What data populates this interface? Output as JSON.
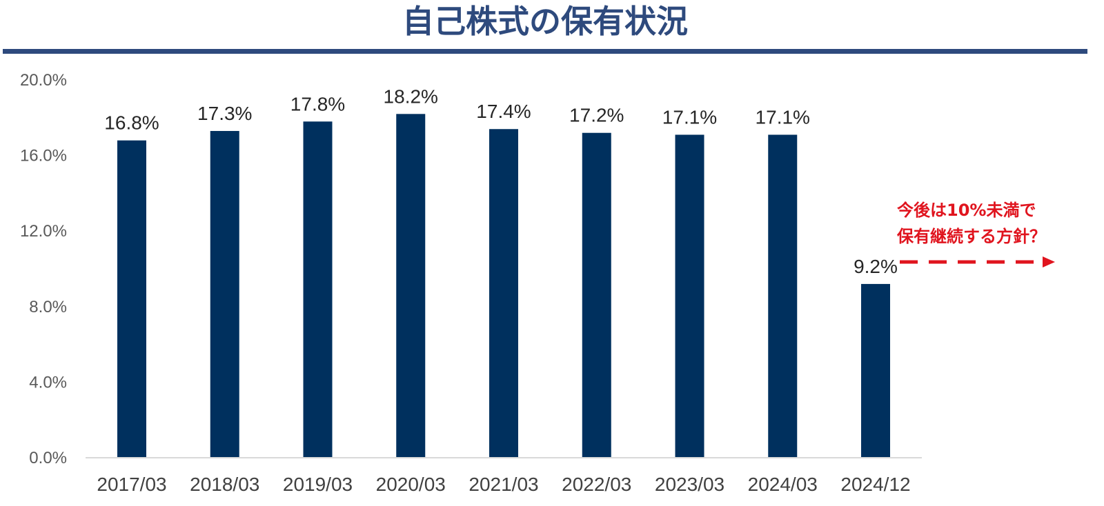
{
  "header": {
    "title": "自己株式の保有状況"
  },
  "chart_data": {
    "type": "bar",
    "title": "自己株式の保有状況",
    "categories": [
      "2017/03",
      "2018/03",
      "2019/03",
      "2020/03",
      "2021/03",
      "2022/03",
      "2023/03",
      "2024/03",
      "2024/12"
    ],
    "values": [
      16.8,
      17.3,
      17.8,
      18.2,
      17.4,
      17.2,
      17.1,
      17.1,
      9.2
    ],
    "data_labels": [
      "16.8%",
      "17.3%",
      "17.8%",
      "18.2%",
      "17.4%",
      "17.2%",
      "17.1%",
      "17.1%",
      "9.2%"
    ],
    "y_ticks": [
      "0.0%",
      "4.0%",
      "8.0%",
      "12.0%",
      "16.0%",
      "20.0%"
    ],
    "ylim": [
      0,
      20
    ],
    "xlabel": "",
    "ylabel": "",
    "grid": false,
    "bar_color": "#00305e",
    "annotation": {
      "lines": [
        "今後は10%未満で",
        "保有継続する方針？"
      ],
      "color": "#e0141e",
      "arrow": "dashed-right"
    }
  }
}
